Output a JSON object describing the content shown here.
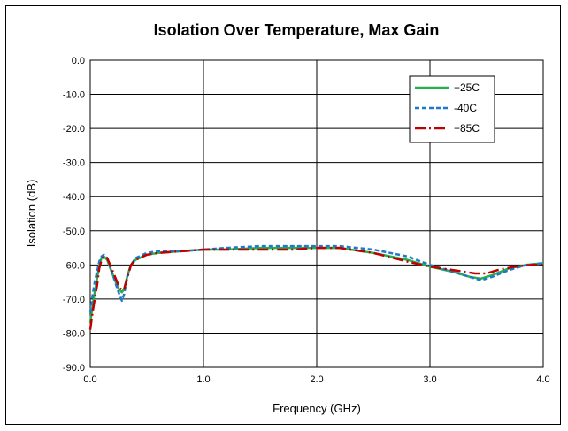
{
  "chart_data": {
    "type": "line",
    "title": "Isolation Over Temperature, Max Gain",
    "xlabel": "Frequency (GHz)",
    "ylabel": "Isolation (dB)",
    "xlim": [
      0.0,
      4.0
    ],
    "ylim": [
      -90.0,
      0.0
    ],
    "x_ticks": [
      "0.0",
      "1.0",
      "2.0",
      "3.0",
      "4.0"
    ],
    "x_tick_values": [
      0,
      1,
      2,
      3,
      4
    ],
    "y_ticks": [
      "0.0",
      "-10.0",
      "-20.0",
      "-30.0",
      "-40.0",
      "-50.0",
      "-60.0",
      "-70.0",
      "-80.0",
      "-90.0"
    ],
    "y_tick_values": [
      0,
      -10,
      -20,
      -30,
      -40,
      -50,
      -60,
      -70,
      -80,
      -90
    ],
    "grid": true,
    "legend_position": "top-right",
    "series": [
      {
        "name": "+25C",
        "color": "#22b14c",
        "style": "solid",
        "x": [
          0.0,
          0.02,
          0.04,
          0.06,
          0.08,
          0.1,
          0.12,
          0.15,
          0.2,
          0.25,
          0.28,
          0.3,
          0.33,
          0.36,
          0.4,
          0.5,
          0.6,
          0.8,
          1.0,
          1.2,
          1.5,
          1.8,
          2.0,
          2.2,
          2.5,
          2.8,
          3.0,
          3.2,
          3.35,
          3.45,
          3.55,
          3.7,
          3.85,
          4.0
        ],
        "y": [
          -77,
          -72,
          -68,
          -64,
          -60,
          -58,
          -57.5,
          -58.5,
          -63,
          -67,
          -68,
          -67,
          -63,
          -60,
          -58.5,
          -57,
          -56.5,
          -56,
          -55.5,
          -55.5,
          -55,
          -55,
          -55,
          -55,
          -56.5,
          -58.5,
          -60.5,
          -62,
          -63.5,
          -64,
          -63,
          -61,
          -60,
          -59.5
        ]
      },
      {
        "name": "-40C",
        "color": "#1f78c8",
        "style": "dashed",
        "x": [
          0.0,
          0.02,
          0.04,
          0.06,
          0.08,
          0.1,
          0.12,
          0.15,
          0.2,
          0.25,
          0.28,
          0.3,
          0.33,
          0.36,
          0.4,
          0.5,
          0.6,
          0.8,
          1.0,
          1.2,
          1.5,
          1.8,
          2.0,
          2.2,
          2.5,
          2.8,
          3.0,
          3.2,
          3.35,
          3.45,
          3.55,
          3.7,
          3.85,
          4.0
        ],
        "y": [
          -74,
          -69,
          -65,
          -62,
          -59,
          -57.5,
          -57,
          -58,
          -63,
          -68,
          -70.5,
          -68.5,
          -63,
          -60,
          -58,
          -56.5,
          -56,
          -56,
          -55.5,
          -55,
          -54.5,
          -54.5,
          -54.5,
          -54.5,
          -55.5,
          -57.5,
          -60,
          -62,
          -63.5,
          -64.5,
          -63.5,
          -61.5,
          -60,
          -59.5
        ]
      },
      {
        "name": "+85C",
        "color": "#c00000",
        "style": "longdash-dot",
        "x": [
          0.0,
          0.02,
          0.04,
          0.06,
          0.08,
          0.1,
          0.12,
          0.15,
          0.2,
          0.25,
          0.28,
          0.3,
          0.33,
          0.36,
          0.4,
          0.5,
          0.6,
          0.8,
          1.0,
          1.2,
          1.5,
          1.8,
          2.0,
          2.2,
          2.5,
          2.8,
          3.0,
          3.2,
          3.3,
          3.4,
          3.5,
          3.6,
          3.75,
          3.9,
          4.0
        ],
        "y": [
          -79,
          -74,
          -70,
          -66,
          -61,
          -58.5,
          -57.5,
          -58,
          -62,
          -66,
          -67.5,
          -67,
          -63.5,
          -60,
          -58.5,
          -57,
          -56.5,
          -56,
          -55.5,
          -55.5,
          -55.5,
          -55.5,
          -55,
          -55,
          -56.5,
          -59,
          -60.5,
          -61.5,
          -62,
          -62.5,
          -62.5,
          -61.5,
          -60.5,
          -60,
          -60
        ]
      }
    ]
  }
}
